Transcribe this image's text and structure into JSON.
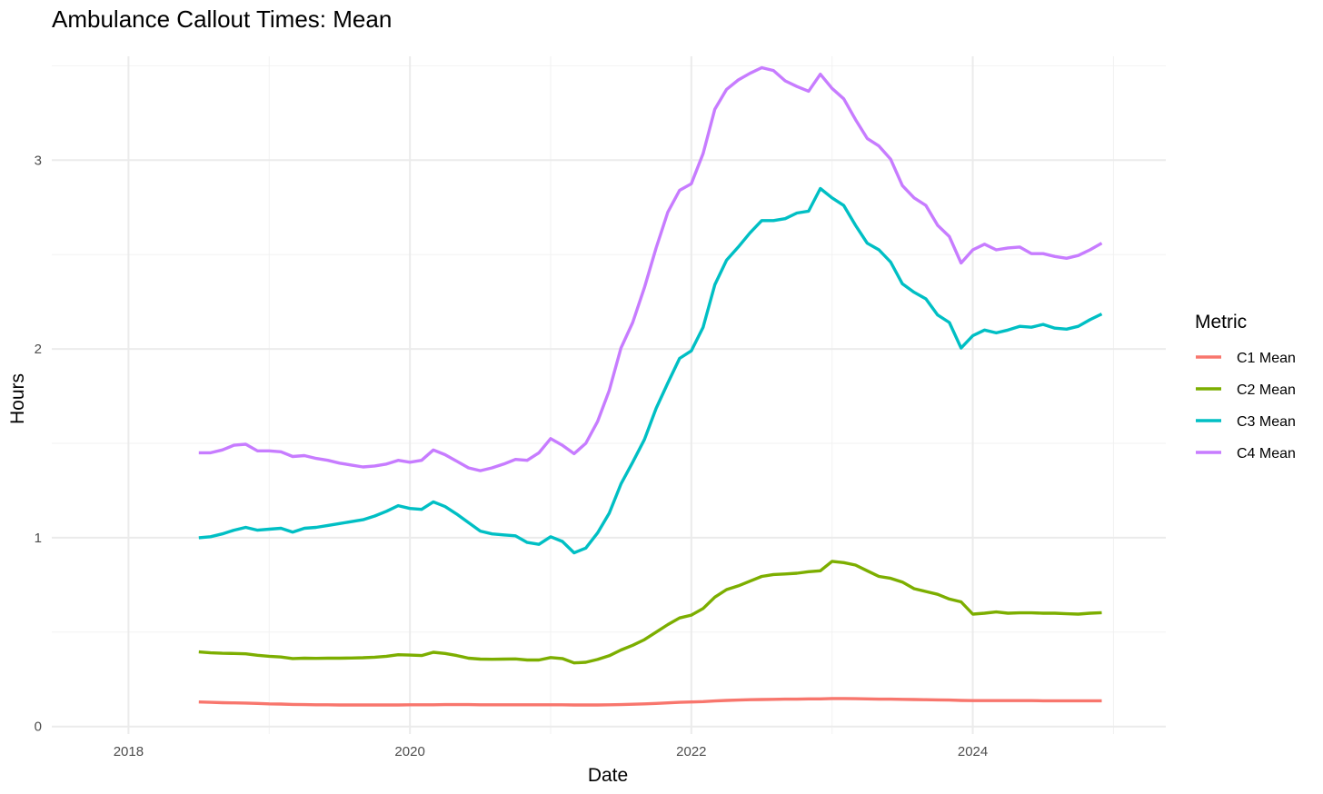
{
  "chart_data": {
    "type": "line",
    "title": "Ambulance Callout Times: Mean",
    "xlabel": "Date",
    "ylabel": "Hours",
    "x_axis_type": "date",
    "xlim": [
      "2017-06-15",
      "2025-05-15"
    ],
    "ylim": [
      -0.04,
      3.55
    ],
    "x_ticks": [
      "2018",
      "2020",
      "2022",
      "2024"
    ],
    "y_ticks": [
      "0",
      "1",
      "2",
      "3"
    ],
    "grid": true,
    "legend_title": "Metric",
    "legend_position": "right",
    "x": [
      "2018-07",
      "2018-08",
      "2018-09",
      "2018-10",
      "2018-11",
      "2018-12",
      "2019-01",
      "2019-02",
      "2019-03",
      "2019-04",
      "2019-05",
      "2019-06",
      "2019-07",
      "2019-08",
      "2019-09",
      "2019-10",
      "2019-11",
      "2019-12",
      "2020-01",
      "2020-02",
      "2020-03",
      "2020-04",
      "2020-05",
      "2020-06",
      "2020-07",
      "2020-08",
      "2020-09",
      "2020-10",
      "2020-11",
      "2020-12",
      "2021-01",
      "2021-02",
      "2021-03",
      "2021-04",
      "2021-05",
      "2021-06",
      "2021-07",
      "2021-08",
      "2021-09",
      "2021-10",
      "2021-11",
      "2021-12",
      "2022-01",
      "2022-02",
      "2022-03",
      "2022-04",
      "2022-05",
      "2022-06",
      "2022-07",
      "2022-08",
      "2022-09",
      "2022-10",
      "2022-11",
      "2022-12",
      "2023-01",
      "2023-02",
      "2023-03",
      "2023-04",
      "2023-05",
      "2023-06",
      "2023-07",
      "2023-08",
      "2023-09",
      "2023-10",
      "2023-11",
      "2023-12",
      "2024-01",
      "2024-02",
      "2024-03",
      "2024-04",
      "2024-05",
      "2024-06",
      "2024-07",
      "2024-08",
      "2024-09",
      "2024-10",
      "2024-11",
      "2024-12"
    ],
    "series": [
      {
        "name": "C1 Mean",
        "color": "#F8766D",
        "values": [
          0.13,
          0.128,
          0.126,
          0.125,
          0.124,
          0.122,
          0.12,
          0.119,
          0.117,
          0.116,
          0.115,
          0.115,
          0.114,
          0.114,
          0.114,
          0.114,
          0.114,
          0.114,
          0.115,
          0.115,
          0.115,
          0.116,
          0.116,
          0.116,
          0.115,
          0.115,
          0.115,
          0.115,
          0.115,
          0.115,
          0.115,
          0.115,
          0.114,
          0.114,
          0.114,
          0.115,
          0.116,
          0.118,
          0.12,
          0.122,
          0.125,
          0.128,
          0.13,
          0.132,
          0.135,
          0.138,
          0.14,
          0.142,
          0.143,
          0.144,
          0.145,
          0.145,
          0.146,
          0.146,
          0.148,
          0.148,
          0.147,
          0.146,
          0.145,
          0.145,
          0.144,
          0.143,
          0.142,
          0.141,
          0.14,
          0.138,
          0.137,
          0.137,
          0.137,
          0.137,
          0.137,
          0.137,
          0.136,
          0.136,
          0.136,
          0.136,
          0.136,
          0.136
        ]
      },
      {
        "name": "C2 Mean",
        "color": "#7CAE00",
        "values": [
          0.395,
          0.39,
          0.388,
          0.387,
          0.385,
          0.377,
          0.372,
          0.368,
          0.36,
          0.362,
          0.361,
          0.362,
          0.362,
          0.363,
          0.364,
          0.367,
          0.372,
          0.38,
          0.378,
          0.376,
          0.393,
          0.387,
          0.376,
          0.362,
          0.357,
          0.356,
          0.357,
          0.358,
          0.352,
          0.352,
          0.365,
          0.36,
          0.337,
          0.34,
          0.355,
          0.375,
          0.405,
          0.43,
          0.46,
          0.5,
          0.54,
          0.575,
          0.59,
          0.625,
          0.685,
          0.725,
          0.745,
          0.77,
          0.795,
          0.805,
          0.808,
          0.812,
          0.82,
          0.825,
          0.875,
          0.868,
          0.855,
          0.825,
          0.795,
          0.785,
          0.765,
          0.73,
          0.715,
          0.7,
          0.675,
          0.66,
          0.595,
          0.6,
          0.607,
          0.6,
          0.602,
          0.602,
          0.6,
          0.6,
          0.597,
          0.595,
          0.6,
          0.603
        ]
      },
      {
        "name": "C3 Mean",
        "color": "#00BFC4",
        "values": [
          1.0,
          1.005,
          1.02,
          1.04,
          1.055,
          1.04,
          1.045,
          1.05,
          1.03,
          1.05,
          1.055,
          1.065,
          1.075,
          1.085,
          1.095,
          1.115,
          1.14,
          1.17,
          1.155,
          1.15,
          1.19,
          1.165,
          1.125,
          1.08,
          1.035,
          1.02,
          1.015,
          1.01,
          0.975,
          0.965,
          1.005,
          0.98,
          0.92,
          0.945,
          1.025,
          1.13,
          1.285,
          1.4,
          1.52,
          1.685,
          1.82,
          1.95,
          1.99,
          2.115,
          2.34,
          2.47,
          2.54,
          2.615,
          2.68,
          2.68,
          2.69,
          2.72,
          2.73,
          2.85,
          2.8,
          2.76,
          2.655,
          2.56,
          2.525,
          2.46,
          2.345,
          2.3,
          2.265,
          2.18,
          2.14,
          2.005,
          2.07,
          2.1,
          2.085,
          2.1,
          2.12,
          2.115,
          2.13,
          2.11,
          2.105,
          2.12,
          2.155,
          2.185
        ]
      },
      {
        "name": "C4 Mean",
        "color": "#C77CFF",
        "values": [
          1.45,
          1.45,
          1.465,
          1.49,
          1.495,
          1.46,
          1.46,
          1.455,
          1.43,
          1.435,
          1.42,
          1.41,
          1.395,
          1.385,
          1.375,
          1.38,
          1.39,
          1.41,
          1.4,
          1.41,
          1.465,
          1.44,
          1.405,
          1.37,
          1.355,
          1.37,
          1.39,
          1.415,
          1.41,
          1.45,
          1.525,
          1.49,
          1.445,
          1.5,
          1.615,
          1.78,
          2.005,
          2.14,
          2.325,
          2.535,
          2.725,
          2.84,
          2.875,
          3.035,
          3.27,
          3.375,
          3.425,
          3.46,
          3.49,
          3.475,
          3.42,
          3.39,
          3.365,
          3.455,
          3.38,
          3.325,
          3.215,
          3.115,
          3.075,
          3.005,
          2.865,
          2.8,
          2.76,
          2.655,
          2.595,
          2.455,
          2.525,
          2.555,
          2.525,
          2.535,
          2.54,
          2.505,
          2.505,
          2.49,
          2.48,
          2.495,
          2.525,
          2.56
        ]
      }
    ]
  }
}
